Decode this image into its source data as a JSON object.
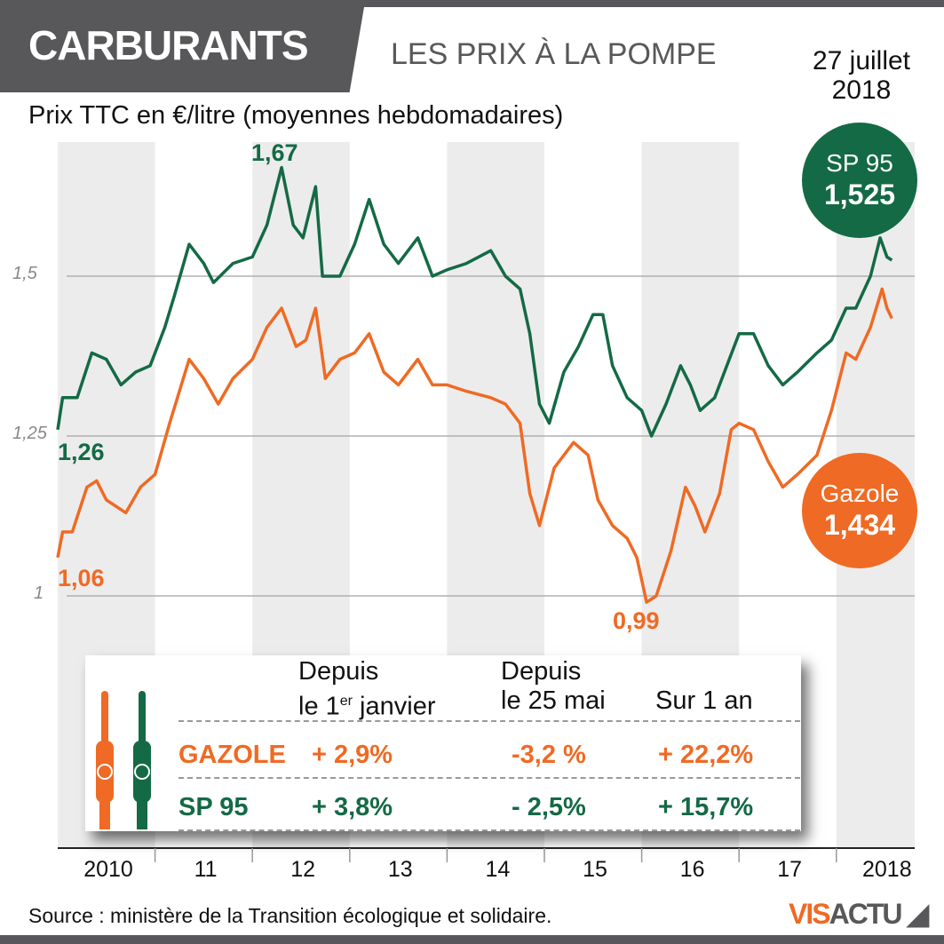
{
  "header": {
    "title": "CARBURANTS",
    "subtitle": "LES PRIX À LA POMPE",
    "date_line1": "27 juillet",
    "date_line2": "2018"
  },
  "colors": {
    "sp95": "#146a45",
    "gazole": "#ef6a24",
    "header": "#58585a",
    "band": "#ececec"
  },
  "chart_data": {
    "type": "line",
    "title": "LES PRIX À LA POMPE",
    "ylabel": "Prix TTC en €/litre (moyennes hebdomadaires)",
    "ylim": [
      0.6,
      1.73
    ],
    "xlim": [
      2010,
      2018.8
    ],
    "yticks": [
      {
        "v": 1,
        "label": "1"
      },
      {
        "v": 1.25,
        "label": "1,25"
      },
      {
        "v": 1.5,
        "label": "1,5"
      }
    ],
    "xticks": [
      "2010",
      "11",
      "12",
      "13",
      "14",
      "15",
      "16",
      "17",
      "2018"
    ],
    "grid": true,
    "series": [
      {
        "name": "SP 95",
        "color": "#146a45",
        "points": [
          [
            2010.0,
            1.26
          ],
          [
            2010.05,
            1.31
          ],
          [
            2010.2,
            1.31
          ],
          [
            2010.35,
            1.38
          ],
          [
            2010.5,
            1.37
          ],
          [
            2010.65,
            1.33
          ],
          [
            2010.8,
            1.35
          ],
          [
            2010.95,
            1.36
          ],
          [
            2011.1,
            1.42
          ],
          [
            2011.2,
            1.47
          ],
          [
            2011.35,
            1.55
          ],
          [
            2011.5,
            1.52
          ],
          [
            2011.6,
            1.49
          ],
          [
            2011.8,
            1.52
          ],
          [
            2012.0,
            1.53
          ],
          [
            2012.15,
            1.58
          ],
          [
            2012.3,
            1.67
          ],
          [
            2012.42,
            1.58
          ],
          [
            2012.52,
            1.56
          ],
          [
            2012.65,
            1.64
          ],
          [
            2012.72,
            1.5
          ],
          [
            2012.9,
            1.5
          ],
          [
            2013.05,
            1.55
          ],
          [
            2013.2,
            1.62
          ],
          [
            2013.35,
            1.55
          ],
          [
            2013.5,
            1.52
          ],
          [
            2013.7,
            1.56
          ],
          [
            2013.85,
            1.5
          ],
          [
            2014.0,
            1.51
          ],
          [
            2014.2,
            1.52
          ],
          [
            2014.45,
            1.54
          ],
          [
            2014.6,
            1.5
          ],
          [
            2014.75,
            1.48
          ],
          [
            2014.85,
            1.41
          ],
          [
            2014.95,
            1.3
          ],
          [
            2015.05,
            1.27
          ],
          [
            2015.2,
            1.35
          ],
          [
            2015.35,
            1.39
          ],
          [
            2015.5,
            1.44
          ],
          [
            2015.6,
            1.44
          ],
          [
            2015.7,
            1.36
          ],
          [
            2015.85,
            1.31
          ],
          [
            2016.0,
            1.29
          ],
          [
            2016.1,
            1.25
          ],
          [
            2016.25,
            1.3
          ],
          [
            2016.4,
            1.36
          ],
          [
            2016.5,
            1.33
          ],
          [
            2016.6,
            1.29
          ],
          [
            2016.75,
            1.31
          ],
          [
            2016.9,
            1.37
          ],
          [
            2017.0,
            1.41
          ],
          [
            2017.15,
            1.41
          ],
          [
            2017.3,
            1.36
          ],
          [
            2017.45,
            1.33
          ],
          [
            2017.6,
            1.35
          ],
          [
            2017.8,
            1.38
          ],
          [
            2017.95,
            1.4
          ],
          [
            2018.1,
            1.45
          ],
          [
            2018.2,
            1.45
          ],
          [
            2018.35,
            1.5
          ],
          [
            2018.45,
            1.56
          ],
          [
            2018.52,
            1.53
          ],
          [
            2018.57,
            1.525
          ]
        ]
      },
      {
        "name": "Gazole",
        "color": "#ef6a24",
        "points": [
          [
            2010.0,
            1.06
          ],
          [
            2010.05,
            1.1
          ],
          [
            2010.15,
            1.1
          ],
          [
            2010.3,
            1.17
          ],
          [
            2010.4,
            1.18
          ],
          [
            2010.5,
            1.15
          ],
          [
            2010.7,
            1.13
          ],
          [
            2010.85,
            1.17
          ],
          [
            2011.0,
            1.19
          ],
          [
            2011.15,
            1.27
          ],
          [
            2011.25,
            1.32
          ],
          [
            2011.35,
            1.37
          ],
          [
            2011.5,
            1.34
          ],
          [
            2011.65,
            1.3
          ],
          [
            2011.8,
            1.34
          ],
          [
            2012.0,
            1.37
          ],
          [
            2012.15,
            1.42
          ],
          [
            2012.3,
            1.45
          ],
          [
            2012.45,
            1.39
          ],
          [
            2012.55,
            1.4
          ],
          [
            2012.65,
            1.45
          ],
          [
            2012.75,
            1.34
          ],
          [
            2012.9,
            1.37
          ],
          [
            2013.05,
            1.38
          ],
          [
            2013.2,
            1.41
          ],
          [
            2013.35,
            1.35
          ],
          [
            2013.5,
            1.33
          ],
          [
            2013.7,
            1.37
          ],
          [
            2013.85,
            1.33
          ],
          [
            2014.0,
            1.33
          ],
          [
            2014.2,
            1.32
          ],
          [
            2014.45,
            1.31
          ],
          [
            2014.6,
            1.3
          ],
          [
            2014.75,
            1.27
          ],
          [
            2014.85,
            1.16
          ],
          [
            2014.95,
            1.11
          ],
          [
            2015.1,
            1.2
          ],
          [
            2015.3,
            1.24
          ],
          [
            2015.45,
            1.22
          ],
          [
            2015.55,
            1.15
          ],
          [
            2015.7,
            1.11
          ],
          [
            2015.85,
            1.09
          ],
          [
            2015.95,
            1.06
          ],
          [
            2016.05,
            0.99
          ],
          [
            2016.15,
            1.0
          ],
          [
            2016.3,
            1.07
          ],
          [
            2016.45,
            1.17
          ],
          [
            2016.55,
            1.14
          ],
          [
            2016.65,
            1.1
          ],
          [
            2016.8,
            1.16
          ],
          [
            2016.92,
            1.26
          ],
          [
            2017.0,
            1.27
          ],
          [
            2017.15,
            1.26
          ],
          [
            2017.3,
            1.21
          ],
          [
            2017.45,
            1.17
          ],
          [
            2017.6,
            1.19
          ],
          [
            2017.8,
            1.22
          ],
          [
            2017.95,
            1.29
          ],
          [
            2018.1,
            1.38
          ],
          [
            2018.2,
            1.37
          ],
          [
            2018.35,
            1.42
          ],
          [
            2018.47,
            1.48
          ],
          [
            2018.52,
            1.45
          ],
          [
            2018.57,
            1.434
          ]
        ]
      }
    ],
    "annotations": [
      {
        "text": "1,67",
        "series": "SP 95",
        "x": 2012.3,
        "y": 1.67
      },
      {
        "text": "1,26",
        "series": "SP 95",
        "x": 2010.0,
        "y": 1.26
      },
      {
        "text": "1,06",
        "series": "Gazole",
        "x": 2010.0,
        "y": 1.06
      },
      {
        "text": "0,99",
        "series": "Gazole",
        "x": 2016.05,
        "y": 0.99
      }
    ]
  },
  "bubbles": {
    "sp95": {
      "name": "SP 95",
      "value": "1,525"
    },
    "gazole": {
      "name": "Gazole",
      "value": "1,434"
    }
  },
  "table": {
    "headers": [
      [
        "Depuis",
        "le 1",
        "er",
        " janvier"
      ],
      [
        "Depuis",
        "le 25 mai"
      ],
      [
        "Sur 1 an"
      ]
    ],
    "rows": [
      {
        "label": "GAZOLE",
        "values": [
          "+ 2,9%",
          "-3,2 %",
          "+ 22,2%"
        ]
      },
      {
        "label": "SP 95",
        "values": [
          "+ 3,8%",
          "- 2,5%",
          "+ 15,7%"
        ]
      }
    ]
  },
  "source": "Source : ministère de la Transition écologique et solidaire.",
  "logo": "VISACTU"
}
